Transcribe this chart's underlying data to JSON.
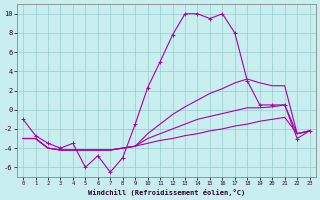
{
  "background_color": "#c8eef0",
  "grid_color": "#99cccc",
  "line_color": "#aa00aa",
  "xlabel": "Windchill (Refroidissement éolien,°C)",
  "xlim_min": -0.5,
  "xlim_max": 23.5,
  "ylim_min": -7,
  "ylim_max": 11,
  "yticks": [
    -6,
    -4,
    -2,
    0,
    2,
    4,
    6,
    8,
    10
  ],
  "xticks": [
    0,
    1,
    2,
    3,
    4,
    5,
    6,
    7,
    8,
    9,
    10,
    11,
    12,
    13,
    14,
    15,
    16,
    17,
    18,
    19,
    20,
    21,
    22,
    23
  ],
  "hours": [
    0,
    1,
    2,
    3,
    4,
    5,
    6,
    7,
    8,
    9,
    10,
    11,
    12,
    13,
    14,
    15,
    16,
    17,
    18,
    19,
    20,
    21,
    22,
    23
  ],
  "line_main": [
    -1.0,
    -2.7,
    -3.5,
    -4.0,
    -3.5,
    -6.0,
    -4.8,
    -6.5,
    -5.0,
    -1.5,
    2.3,
    5.0,
    7.8,
    10.0,
    10.0,
    9.5,
    10.0,
    8.0,
    3.0,
    0.5,
    0.5,
    0.5,
    -3.0,
    -2.2
  ],
  "line_a": [
    -3.0,
    -3.0,
    -4.0,
    -4.2,
    -4.2,
    -4.2,
    -4.2,
    -4.2,
    -4.0,
    -3.8,
    -3.5,
    -3.2,
    -3.0,
    -2.7,
    -2.5,
    -2.2,
    -2.0,
    -1.7,
    -1.5,
    -1.2,
    -1.0,
    -0.8,
    -2.5,
    -2.2
  ],
  "line_b": [
    -3.0,
    -3.0,
    -4.0,
    -4.2,
    -4.2,
    -4.2,
    -4.2,
    -4.2,
    -4.0,
    -3.8,
    -3.0,
    -2.5,
    -2.0,
    -1.5,
    -1.0,
    -0.7,
    -0.4,
    -0.1,
    0.2,
    0.2,
    0.3,
    0.5,
    -2.5,
    -2.2
  ],
  "line_c": [
    -3.0,
    -3.0,
    -4.0,
    -4.2,
    -4.2,
    -4.2,
    -4.2,
    -4.2,
    -4.0,
    -3.8,
    -2.5,
    -1.5,
    -0.5,
    0.3,
    1.0,
    1.7,
    2.2,
    2.8,
    3.2,
    2.8,
    2.5,
    2.5,
    -2.5,
    -2.2
  ]
}
